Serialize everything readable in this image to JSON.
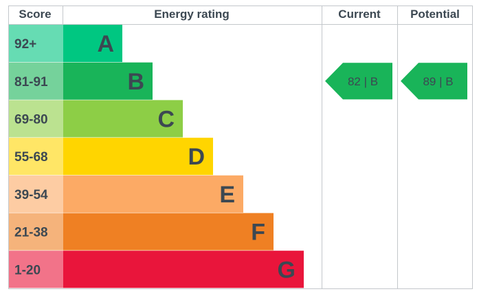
{
  "headers": {
    "score": "Score",
    "rating": "Energy rating",
    "current": "Current",
    "potential": "Potential"
  },
  "chart_data": {
    "type": "bar",
    "title": "",
    "bands": [
      {
        "letter": "A",
        "score": "92+",
        "color": "#00c781",
        "score_bg": "#66dcb3"
      },
      {
        "letter": "B",
        "score": "81-91",
        "color": "#19b459",
        "score_bg": "#75d29b"
      },
      {
        "letter": "C",
        "score": "69-80",
        "color": "#8dce46",
        "score_bg": "#bbe290"
      },
      {
        "letter": "D",
        "score": "55-68",
        "color": "#ffd500",
        "score_bg": "#ffe666"
      },
      {
        "letter": "E",
        "score": "39-54",
        "color": "#fcaa65",
        "score_bg": "#fdcca3"
      },
      {
        "letter": "F",
        "score": "21-38",
        "color": "#ef8023",
        "score_bg": "#f5b37b"
      },
      {
        "letter": "G",
        "score": "1-20",
        "color": "#e9153b",
        "score_bg": "#f27389"
      }
    ],
    "current": {
      "value": 82,
      "band": "B",
      "label": "82 | B",
      "color": "#19b459"
    },
    "potential": {
      "value": 89,
      "band": "B",
      "label": "89 | B",
      "color": "#19b459"
    }
  }
}
